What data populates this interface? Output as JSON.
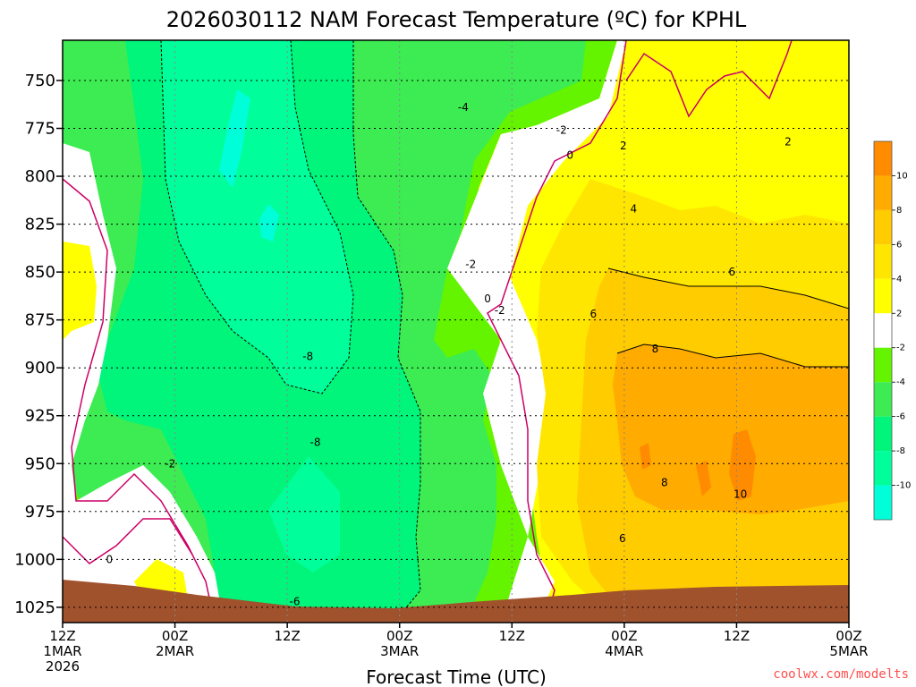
{
  "chart_data": {
    "type": "contour",
    "title": "2026030112 NAM Forecast Temperature (ºC) for KPHL",
    "xlabel": "Forecast Time (UTC)",
    "ylabel": "",
    "credit": "coolwx.com/modelts",
    "x_ticks": [
      {
        "h": 0,
        "l1": "12Z",
        "l2": "1MAR",
        "l3": "2026"
      },
      {
        "h": 12,
        "l1": "00Z",
        "l2": "2MAR",
        "l3": ""
      },
      {
        "h": 24,
        "l1": "12Z",
        "l2": "",
        "l3": ""
      },
      {
        "h": 36,
        "l1": "00Z",
        "l2": "3MAR",
        "l3": ""
      },
      {
        "h": 48,
        "l1": "12Z",
        "l2": "",
        "l3": ""
      },
      {
        "h": 60,
        "l1": "00Z",
        "l2": "4MAR",
        "l3": ""
      },
      {
        "h": 72,
        "l1": "12Z",
        "l2": "",
        "l3": ""
      },
      {
        "h": 84,
        "l1": "00Z",
        "l2": "5MAR",
        "l3": ""
      }
    ],
    "y_ticks": [
      "750",
      "775",
      "800",
      "825",
      "850",
      "875",
      "900",
      "925",
      "950",
      "975",
      "1000",
      "1025"
    ],
    "y_axis": {
      "range_hPa": [
        729,
        1033
      ],
      "reversed": true
    },
    "x_axis": {
      "range_hours": [
        0,
        84
      ]
    },
    "grid": true,
    "colorbar": {
      "levels": [
        -12,
        -10,
        -8,
        -6,
        -4,
        -2,
        2,
        4,
        6,
        8,
        10,
        12
      ],
      "labels": [
        "10",
        "8",
        "6",
        "4",
        "2",
        "-2",
        "-4",
        "-6",
        "-8",
        "-10"
      ],
      "colors": [
        "#00ffd8",
        "#00ff9a",
        "#00f57a",
        "#3cec52",
        "#64f400",
        "#ffffff",
        "#ffff00",
        "#ffe600",
        "#ffcc00",
        "#ffab00",
        "#ff8c00"
      ]
    },
    "contour_labels": [
      {
        "text": "-4",
        "h": 42.8,
        "p": 764
      },
      {
        "text": "-2",
        "h": 53.3,
        "p": 776
      },
      {
        "text": "0",
        "h": 54.2,
        "p": 789
      },
      {
        "text": "2",
        "h": 59.9,
        "p": 784
      },
      {
        "text": "2",
        "h": 77.5,
        "p": 782
      },
      {
        "text": "4",
        "h": 61.0,
        "p": 817
      },
      {
        "text": "-2",
        "h": 43.6,
        "p": 846
      },
      {
        "text": "0",
        "h": 45.4,
        "p": 864
      },
      {
        "text": "-2",
        "h": 46.7,
        "p": 870
      },
      {
        "text": "6",
        "h": 71.5,
        "p": 850
      },
      {
        "text": "6",
        "h": 56.7,
        "p": 872
      },
      {
        "text": "8",
        "h": 63.3,
        "p": 890
      },
      {
        "text": "-8",
        "h": 26.2,
        "p": 894
      },
      {
        "text": "-8",
        "h": 27.0,
        "p": 939
      },
      {
        "text": "-2",
        "h": 11.5,
        "p": 950
      },
      {
        "text": "8",
        "h": 64.3,
        "p": 960
      },
      {
        "text": "10",
        "h": 72.4,
        "p": 966
      },
      {
        "text": "0",
        "h": 5.0,
        "p": 1000
      },
      {
        "text": "6",
        "h": 59.8,
        "p": 989
      },
      {
        "text": "-6",
        "h": 24.8,
        "p": 1022
      }
    ]
  }
}
